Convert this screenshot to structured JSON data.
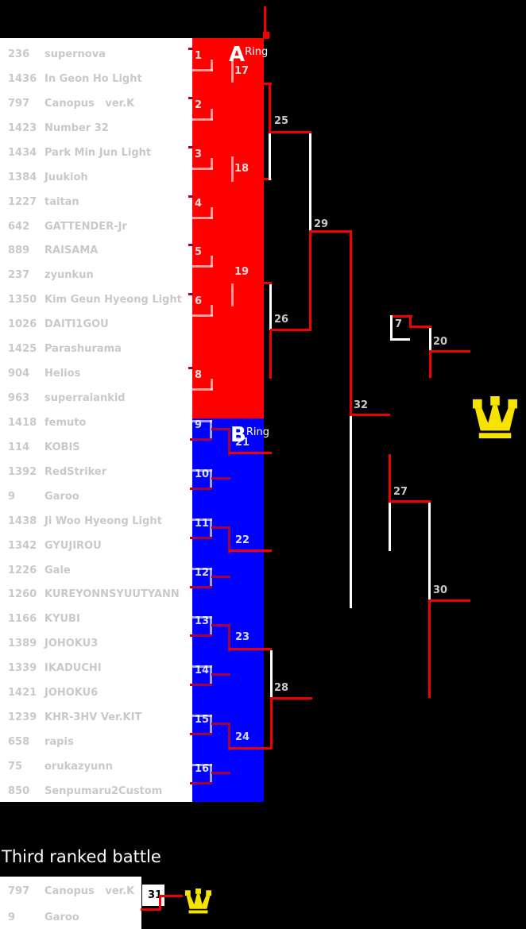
{
  "colors": {
    "zone_a": "#ff0000",
    "zone_b": "#0000ff",
    "win_line": "#f20000",
    "lose_line": "#ffffff",
    "join_line": "#aa0033",
    "crown": "#f6e400"
  },
  "ring_a": {
    "letter": "A",
    "word": "Ring",
    "entrants": [
      {
        "id": "236",
        "name": "supernova"
      },
      {
        "id": "1436",
        "name": "In Geon Ho Light"
      },
      {
        "id": "797",
        "name": "Canopus   ver.K"
      },
      {
        "id": "1423",
        "name": "Number 32"
      },
      {
        "id": "1434",
        "name": "Park Min Jun Light"
      },
      {
        "id": "1384",
        "name": "Juukioh"
      },
      {
        "id": "1227",
        "name": "taitan"
      },
      {
        "id": "642",
        "name": "GATTENDER-Jr"
      },
      {
        "id": "889",
        "name": "RAISAMA"
      },
      {
        "id": "237",
        "name": "zyunkun"
      },
      {
        "id": "1350",
        "name": "Kim Geun Hyeong Light"
      },
      {
        "id": "1026",
        "name": "DAITI1GOU"
      },
      {
        "id": "1425",
        "name": "Parashurama"
      },
      {
        "id": "904",
        "name": "Helios"
      },
      {
        "id": "963",
        "name": "superraiankid"
      }
    ],
    "round1": [
      "1",
      "2",
      "3",
      "4",
      "5",
      "6",
      "8"
    ],
    "round2": [
      "17",
      "18",
      "19"
    ]
  },
  "ring_b": {
    "letter": "B",
    "word": "Ring",
    "entrants": [
      {
        "id": "1418",
        "name": "femuto"
      },
      {
        "id": "114",
        "name": "KOBIS"
      },
      {
        "id": "1392",
        "name": "RedStriker"
      },
      {
        "id": "9",
        "name": "Garoo"
      },
      {
        "id": "1438",
        "name": "Ji Woo Hyeong Light"
      },
      {
        "id": "1342",
        "name": "GYUJIROU"
      },
      {
        "id": "1226",
        "name": "Gale"
      },
      {
        "id": "1260",
        "name": "KUREYONNSYUUTYANN"
      },
      {
        "id": "1166",
        "name": "KYUBI"
      },
      {
        "id": "1389",
        "name": "JOHOKU3"
      },
      {
        "id": "1339",
        "name": "IKADUCHI"
      },
      {
        "id": "1421",
        "name": "JOHOKU6"
      },
      {
        "id": "1239",
        "name": "KHR-3HV Ver.KIT"
      },
      {
        "id": "658",
        "name": "rapis"
      },
      {
        "id": "75",
        "name": "orukazyunn"
      },
      {
        "id": "850",
        "name": "Senpumaru2Custom"
      }
    ],
    "round1": [
      "9",
      "10",
      "11",
      "12",
      "13",
      "14",
      "15",
      "16"
    ],
    "round2": [
      "21",
      "22",
      "23",
      "24"
    ]
  },
  "bracket": {
    "m7": "7",
    "m20": "20",
    "m25": "25",
    "m26": "26",
    "m27": "27",
    "m28": "28",
    "m29": "29",
    "m30": "30",
    "m32": "32"
  },
  "third_place": {
    "heading": "Third ranked battle",
    "match": "31",
    "entrants": [
      {
        "id": "797",
        "name": "Canopus   ver.K"
      },
      {
        "id": "9",
        "name": "Garoo"
      }
    ]
  }
}
